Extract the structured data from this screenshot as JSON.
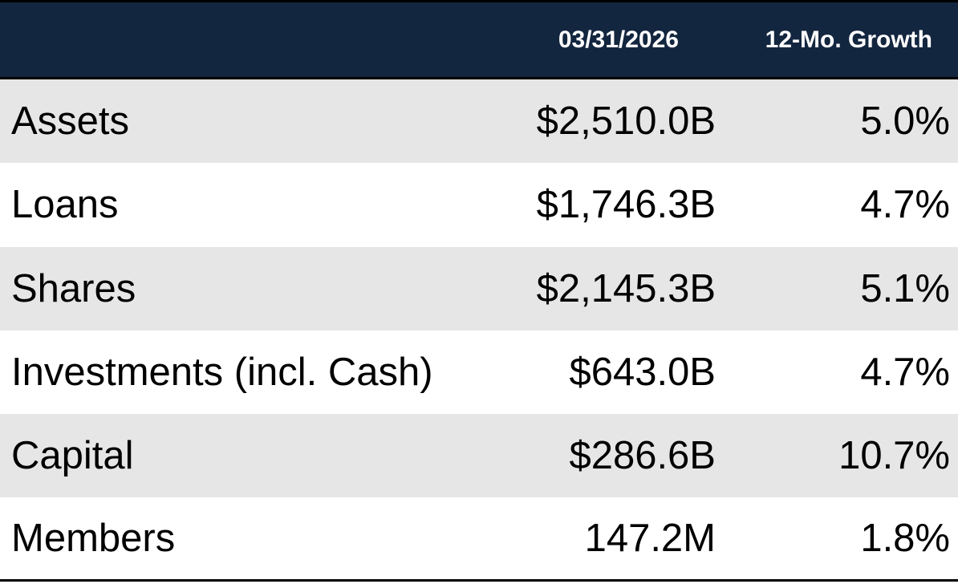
{
  "header": {
    "date_label": "03/31/2026",
    "growth_label": "12-Mo. Growth"
  },
  "rows": [
    {
      "label": "Assets",
      "value": "$2,510.0B",
      "growth": "5.0%"
    },
    {
      "label": "Loans",
      "value": "$1,746.3B",
      "growth": "4.7%"
    },
    {
      "label": "Shares",
      "value": "$2,145.3B",
      "growth": "5.1%"
    },
    {
      "label": "Investments (incl. Cash)",
      "value": "$643.0B",
      "growth": "4.7%"
    },
    {
      "label": "Capital",
      "value": "$286.6B",
      "growth": "10.7%"
    },
    {
      "label": "Members",
      "value": "147.2M",
      "growth": "1.8%"
    }
  ],
  "colors": {
    "header_bg": "#13263f",
    "header_text": "#ffffff",
    "row_shade": "#e6e6e6",
    "row_plain": "#ffffff",
    "rule": "#000000"
  }
}
